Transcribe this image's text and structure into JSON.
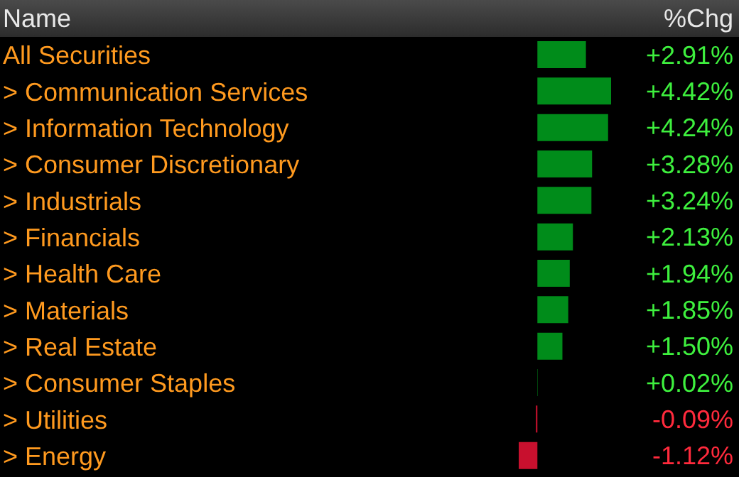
{
  "chart_data": {
    "type": "bar",
    "orientation": "horizontal",
    "ylabel": "Name",
    "xlabel": "%Chg",
    "categories": [
      "All Securities",
      "> Communication Services",
      "> Information Technology",
      "> Consumer Discretionary",
      "> Industrials",
      "> Financials",
      "> Health Care",
      "> Materials",
      "> Real Estate",
      "> Consumer Staples",
      "> Utilities",
      "> Energy"
    ],
    "values": [
      2.91,
      4.42,
      4.24,
      3.28,
      3.24,
      2.13,
      1.94,
      1.85,
      1.5,
      0.02,
      -0.09,
      -1.12
    ],
    "colors": [
      "#008c1a",
      "#008c1a",
      "#008c1a",
      "#008c1a",
      "#008c1a",
      "#008c1a",
      "#008c1a",
      "#008c1a",
      "#008c1a",
      "#008c1a",
      "#c8102e",
      "#c8102e"
    ],
    "value_labels": [
      "+2.91%",
      "+4.42%",
      "+4.24%",
      "+3.28%",
      "+3.24%",
      "+2.13%",
      "+1.94%",
      "+1.85%",
      "+1.50%",
      "+0.02%",
      "-0.09%",
      "-1.12%"
    ],
    "grid": false,
    "legend": false
  }
}
